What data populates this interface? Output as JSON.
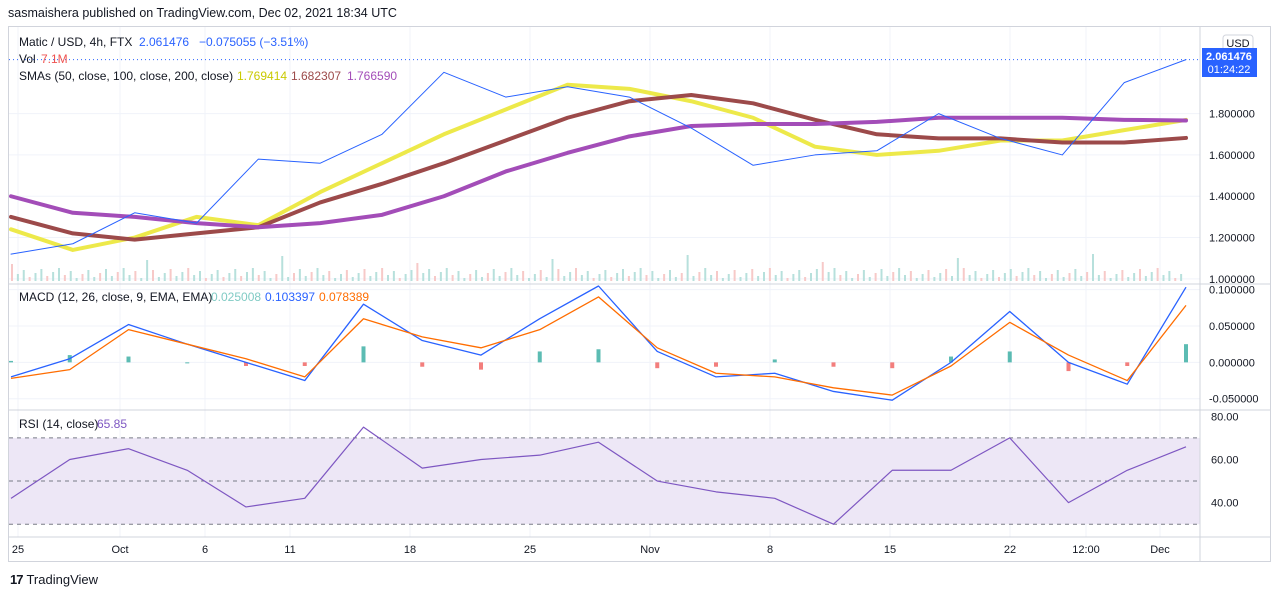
{
  "header": {
    "published": "sasmaishera published on TradingView.com, Dec 02, 2021 18:34 UTC"
  },
  "legend": {
    "symbol": "Matic / USD, 4h, FTX",
    "last": "2.061476",
    "change": "−0.075055 (−3.51%)",
    "vol_label": "Vol",
    "vol_value": "7.1M",
    "sma_label": "SMAs (50, close, 100, close, 200, close)",
    "sma50": "1.769414",
    "sma100": "1.682307",
    "sma200": "1.766590",
    "macd_label": "MACD (12, 26, close, 9, EMA, EMA)",
    "macd_hist": "0.025008",
    "macd_line": "0.103397",
    "macd_signal": "0.078389",
    "rsi_label": "RSI (14, close)",
    "rsi_value": "65.85"
  },
  "price_axis": {
    "currency": "USD",
    "ticks": [
      "1.000000",
      "1.200000",
      "1.400000",
      "1.600000",
      "1.800000"
    ],
    "last_label": "2.061476",
    "countdown": "01:24:22"
  },
  "macd_axis": {
    "ticks": [
      "0.100000",
      "0.050000",
      "0.000000",
      "-0.050000"
    ]
  },
  "rsi_axis": {
    "ticks": [
      "80.00",
      "60.00",
      "40.00"
    ]
  },
  "time_axis": {
    "ticks": [
      "25",
      "Oct",
      "6",
      "11",
      "18",
      "25",
      "Nov",
      "8",
      "15",
      "22",
      "12:00",
      "Dec"
    ]
  },
  "colors": {
    "price": "#2962ff",
    "sma50": "#f5f542",
    "sma100": "#9c4a4a",
    "sma200": "#a34db8",
    "macd": "#2962ff",
    "signal": "#ff6d00",
    "hist_up": "#26a69a",
    "hist_down": "#ef5350",
    "rsi": "#7e57c2",
    "rsi_band": "#ede7f6"
  },
  "footer": {
    "brand": "TradingView",
    "logo_text": "17"
  },
  "chart_data": [
    {
      "type": "line",
      "title": "Matic / USD, 4h, FTX",
      "x": [
        "Sep 25",
        "Oct 1",
        "Oct 6",
        "Oct 11",
        "Oct 15",
        "Oct 18",
        "Oct 25",
        "Oct 29",
        "Nov 1",
        "Nov 4",
        "Nov 8",
        "Nov 12",
        "Nov 15",
        "Nov 18",
        "Nov 22",
        "Nov 25",
        "Nov 27",
        "Nov 29",
        "Dec 1",
        "Dec 2"
      ],
      "series": [
        {
          "name": "Matic / USD",
          "values": [
            1.12,
            1.17,
            1.32,
            1.27,
            1.58,
            1.56,
            1.7,
            2.0,
            1.88,
            1.93,
            1.88,
            1.73,
            1.55,
            1.6,
            1.62,
            1.8,
            1.68,
            1.6,
            1.95,
            2.061476
          ]
        },
        {
          "name": "SMA 50",
          "values": [
            1.24,
            1.14,
            1.2,
            1.3,
            1.26,
            1.42,
            1.56,
            1.7,
            1.82,
            1.94,
            1.92,
            1.86,
            1.78,
            1.64,
            1.6,
            1.62,
            1.67,
            1.67,
            1.72,
            1.769414
          ]
        },
        {
          "name": "SMA 100",
          "values": [
            1.3,
            1.22,
            1.19,
            1.22,
            1.25,
            1.37,
            1.46,
            1.56,
            1.67,
            1.78,
            1.86,
            1.89,
            1.85,
            1.77,
            1.7,
            1.68,
            1.68,
            1.66,
            1.66,
            1.682307
          ]
        },
        {
          "name": "SMA 200",
          "values": [
            1.4,
            1.32,
            1.3,
            1.27,
            1.25,
            1.27,
            1.31,
            1.4,
            1.52,
            1.61,
            1.69,
            1.74,
            1.75,
            1.75,
            1.76,
            1.78,
            1.78,
            1.78,
            1.77,
            1.76659
          ]
        }
      ],
      "ylim": [
        0.98,
        2.2
      ]
    },
    {
      "type": "line",
      "title": "MACD (12, 26, close, 9, EMA, EMA)",
      "x": [
        "Sep 25",
        "Oct 1",
        "Oct 4",
        "Oct 8",
        "Oct 11",
        "Oct 15",
        "Oct 18",
        "Oct 22",
        "Oct 25",
        "Oct 29",
        "Nov 1",
        "Nov 4",
        "Nov 8",
        "Nov 12",
        "Nov 15",
        "Nov 18",
        "Nov 22",
        "Nov 25",
        "Nov 27",
        "Nov 29",
        "Dec 2"
      ],
      "series": [
        {
          "name": "MACD",
          "values": [
            -0.02,
            0.005,
            0.052,
            0.025,
            0.0,
            -0.025,
            0.08,
            0.03,
            0.01,
            0.06,
            0.105,
            0.015,
            -0.02,
            -0.015,
            -0.04,
            -0.052,
            0.0,
            0.07,
            0.0,
            -0.03,
            0.103397
          ]
        },
        {
          "name": "Signal",
          "values": [
            -0.022,
            -0.01,
            0.045,
            0.025,
            0.005,
            -0.02,
            0.06,
            0.035,
            0.02,
            0.045,
            0.09,
            0.02,
            -0.015,
            -0.02,
            -0.035,
            -0.045,
            -0.005,
            0.055,
            0.01,
            -0.025,
            0.078389
          ]
        },
        {
          "name": "Histogram",
          "values": [
            0.002,
            0.01,
            0.008,
            0.0,
            -0.005,
            -0.005,
            0.022,
            -0.006,
            -0.01,
            0.015,
            0.018,
            -0.008,
            -0.006,
            0.004,
            -0.006,
            -0.008,
            0.008,
            0.015,
            -0.012,
            -0.005,
            0.025008
          ]
        }
      ],
      "ylim": [
        -0.06,
        0.105
      ]
    },
    {
      "type": "line",
      "title": "RSI (14, close)",
      "x": [
        "Sep 25",
        "Oct 1",
        "Oct 4",
        "Oct 8",
        "Oct 11",
        "Oct 15",
        "Oct 18",
        "Oct 22",
        "Oct 25",
        "Oct 29",
        "Nov 1",
        "Nov 4",
        "Nov 8",
        "Nov 12",
        "Nov 15",
        "Nov 18",
        "Nov 22",
        "Nov 25",
        "Nov 27",
        "Nov 29",
        "Dec 2"
      ],
      "series": [
        {
          "name": "RSI",
          "values": [
            42,
            60,
            65,
            55,
            38,
            42,
            75,
            56,
            60,
            62,
            68,
            50,
            45,
            42,
            30,
            55,
            55,
            70,
            40,
            55,
            65.85
          ]
        }
      ],
      "ylim": [
        25,
        82
      ],
      "bands": [
        30,
        50,
        70
      ]
    }
  ]
}
